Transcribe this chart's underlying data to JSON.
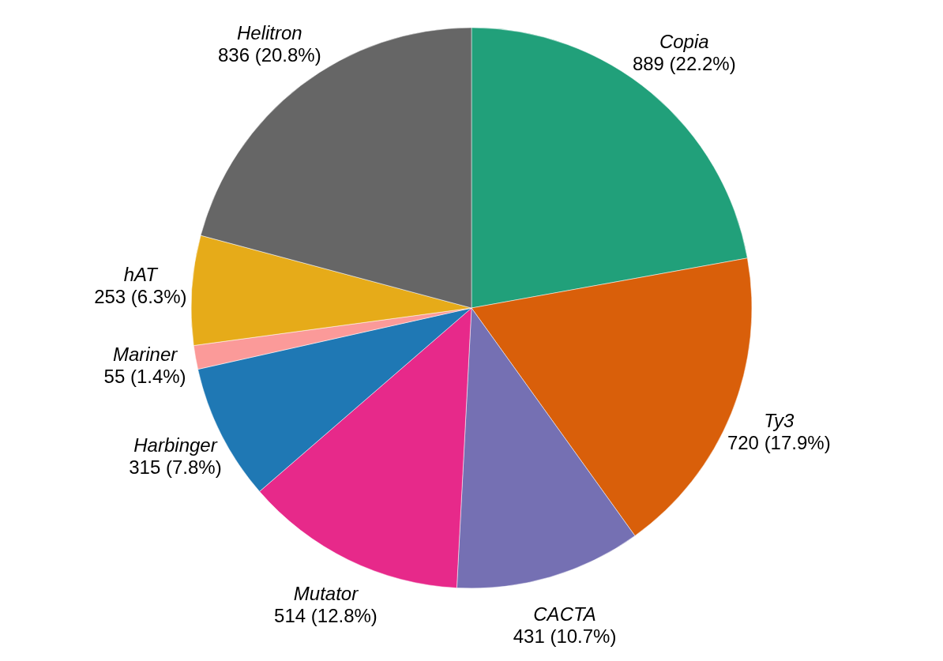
{
  "chart_data": {
    "type": "pie",
    "categories": [
      "Copia",
      "Ty3",
      "CACTA",
      "Mutator",
      "Harbinger",
      "Mariner",
      "hAT",
      "Helitron"
    ],
    "values": [
      889,
      720,
      431,
      514,
      315,
      55,
      253,
      836
    ],
    "colors": [
      "#21a07a",
      "#d95f0a",
      "#7570b3",
      "#e7298a",
      "#1f78b4",
      "#fb9a99",
      "#e6ab19",
      "#666666"
    ],
    "value_labels": [
      "889 (22.2%)",
      "720 (17.9%)",
      "431 (10.7%)",
      "514 (12.8%)",
      "315 (7.8%)",
      "55 (1.4%)",
      "253 (6.3%)",
      "836 (20.8%)"
    ]
  }
}
